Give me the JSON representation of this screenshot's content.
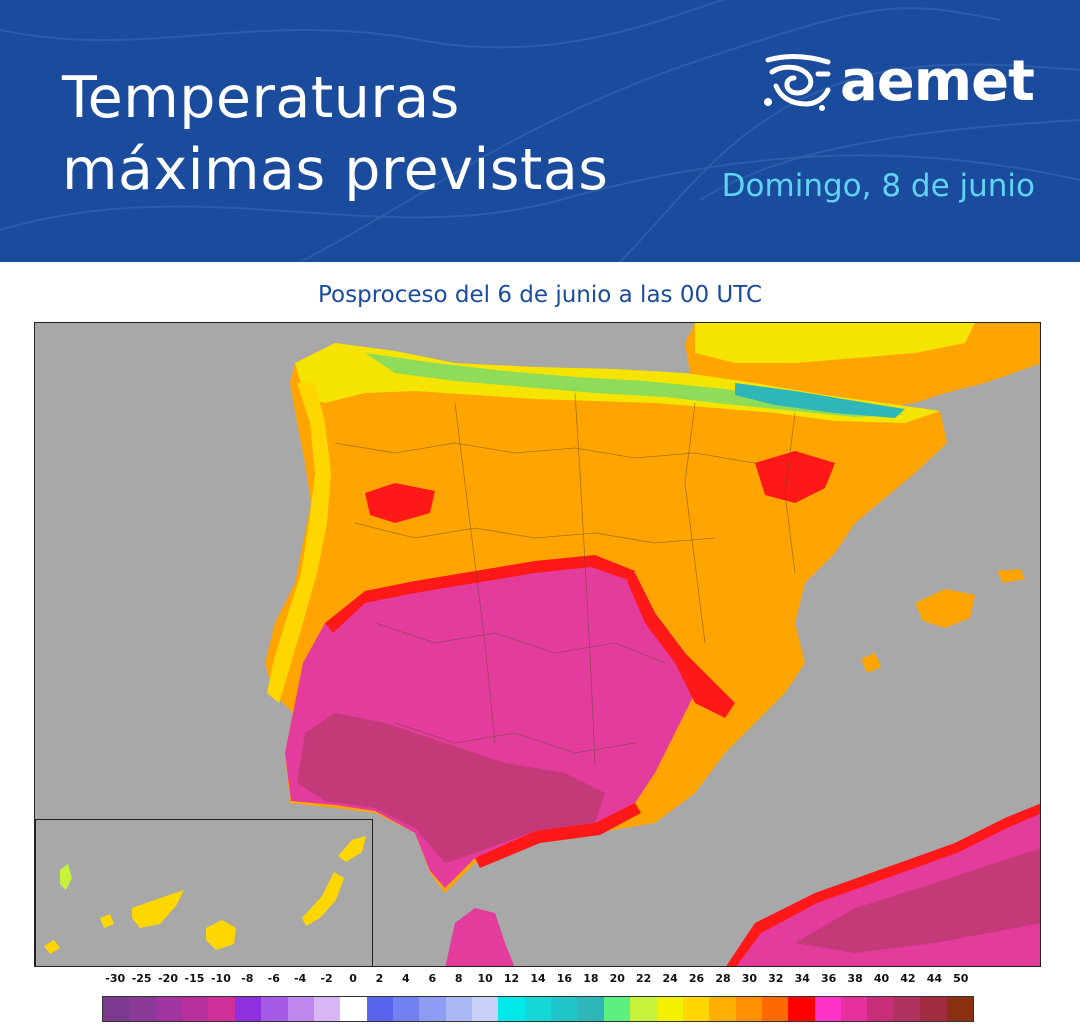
{
  "header": {
    "title_line1": "Temperaturas",
    "title_line2": "máximas previstas",
    "logo_text": "aemet",
    "date": "Domingo, 8 de junio"
  },
  "subtitle": "Posproceso del 6 de junio a las 00 UTC",
  "legend": {
    "labels": [
      "-30",
      "-25",
      "-20",
      "-15",
      "-10",
      "-8",
      "-6",
      "-4",
      "-2",
      "0",
      "2",
      "4",
      "6",
      "8",
      "10",
      "12",
      "14",
      "16",
      "18",
      "20",
      "22",
      "24",
      "26",
      "28",
      "30",
      "32",
      "34",
      "36",
      "38",
      "40",
      "42",
      "44",
      "50"
    ],
    "colors": [
      "#7b3a8f",
      "#8c3a97",
      "#a0359f",
      "#b8309d",
      "#d02e98",
      "#8e2fe0",
      "#a65be6",
      "#bf86ec",
      "#d8b6f3",
      "#ffffff",
      "#5a64f0",
      "#7280f2",
      "#8e9cf4",
      "#aab8f6",
      "#c8d2f9",
      "#00e8e8",
      "#14d8d8",
      "#20c7c8",
      "#2fb6b8",
      "#5cf080",
      "#c7f23a",
      "#f3f000",
      "#ffd700",
      "#ffb000",
      "#ff9000",
      "#ff6a00",
      "#ff0000",
      "#ff33c8",
      "#e8309c",
      "#c82e78",
      "#b03060",
      "#a02c40",
      "#8a3012"
    ]
  },
  "map": {
    "regions": [
      {
        "name": "north-coast",
        "color": "#f5e400"
      },
      {
        "name": "plateau",
        "color": "#ffa400"
      },
      {
        "name": "south",
        "color": "#e33c9d"
      },
      {
        "name": "hot-core",
        "color": "#c43a78"
      },
      {
        "name": "hot-edge",
        "color": "#ff1818"
      },
      {
        "name": "sea",
        "color": "#a8a8a8"
      }
    ]
  }
}
